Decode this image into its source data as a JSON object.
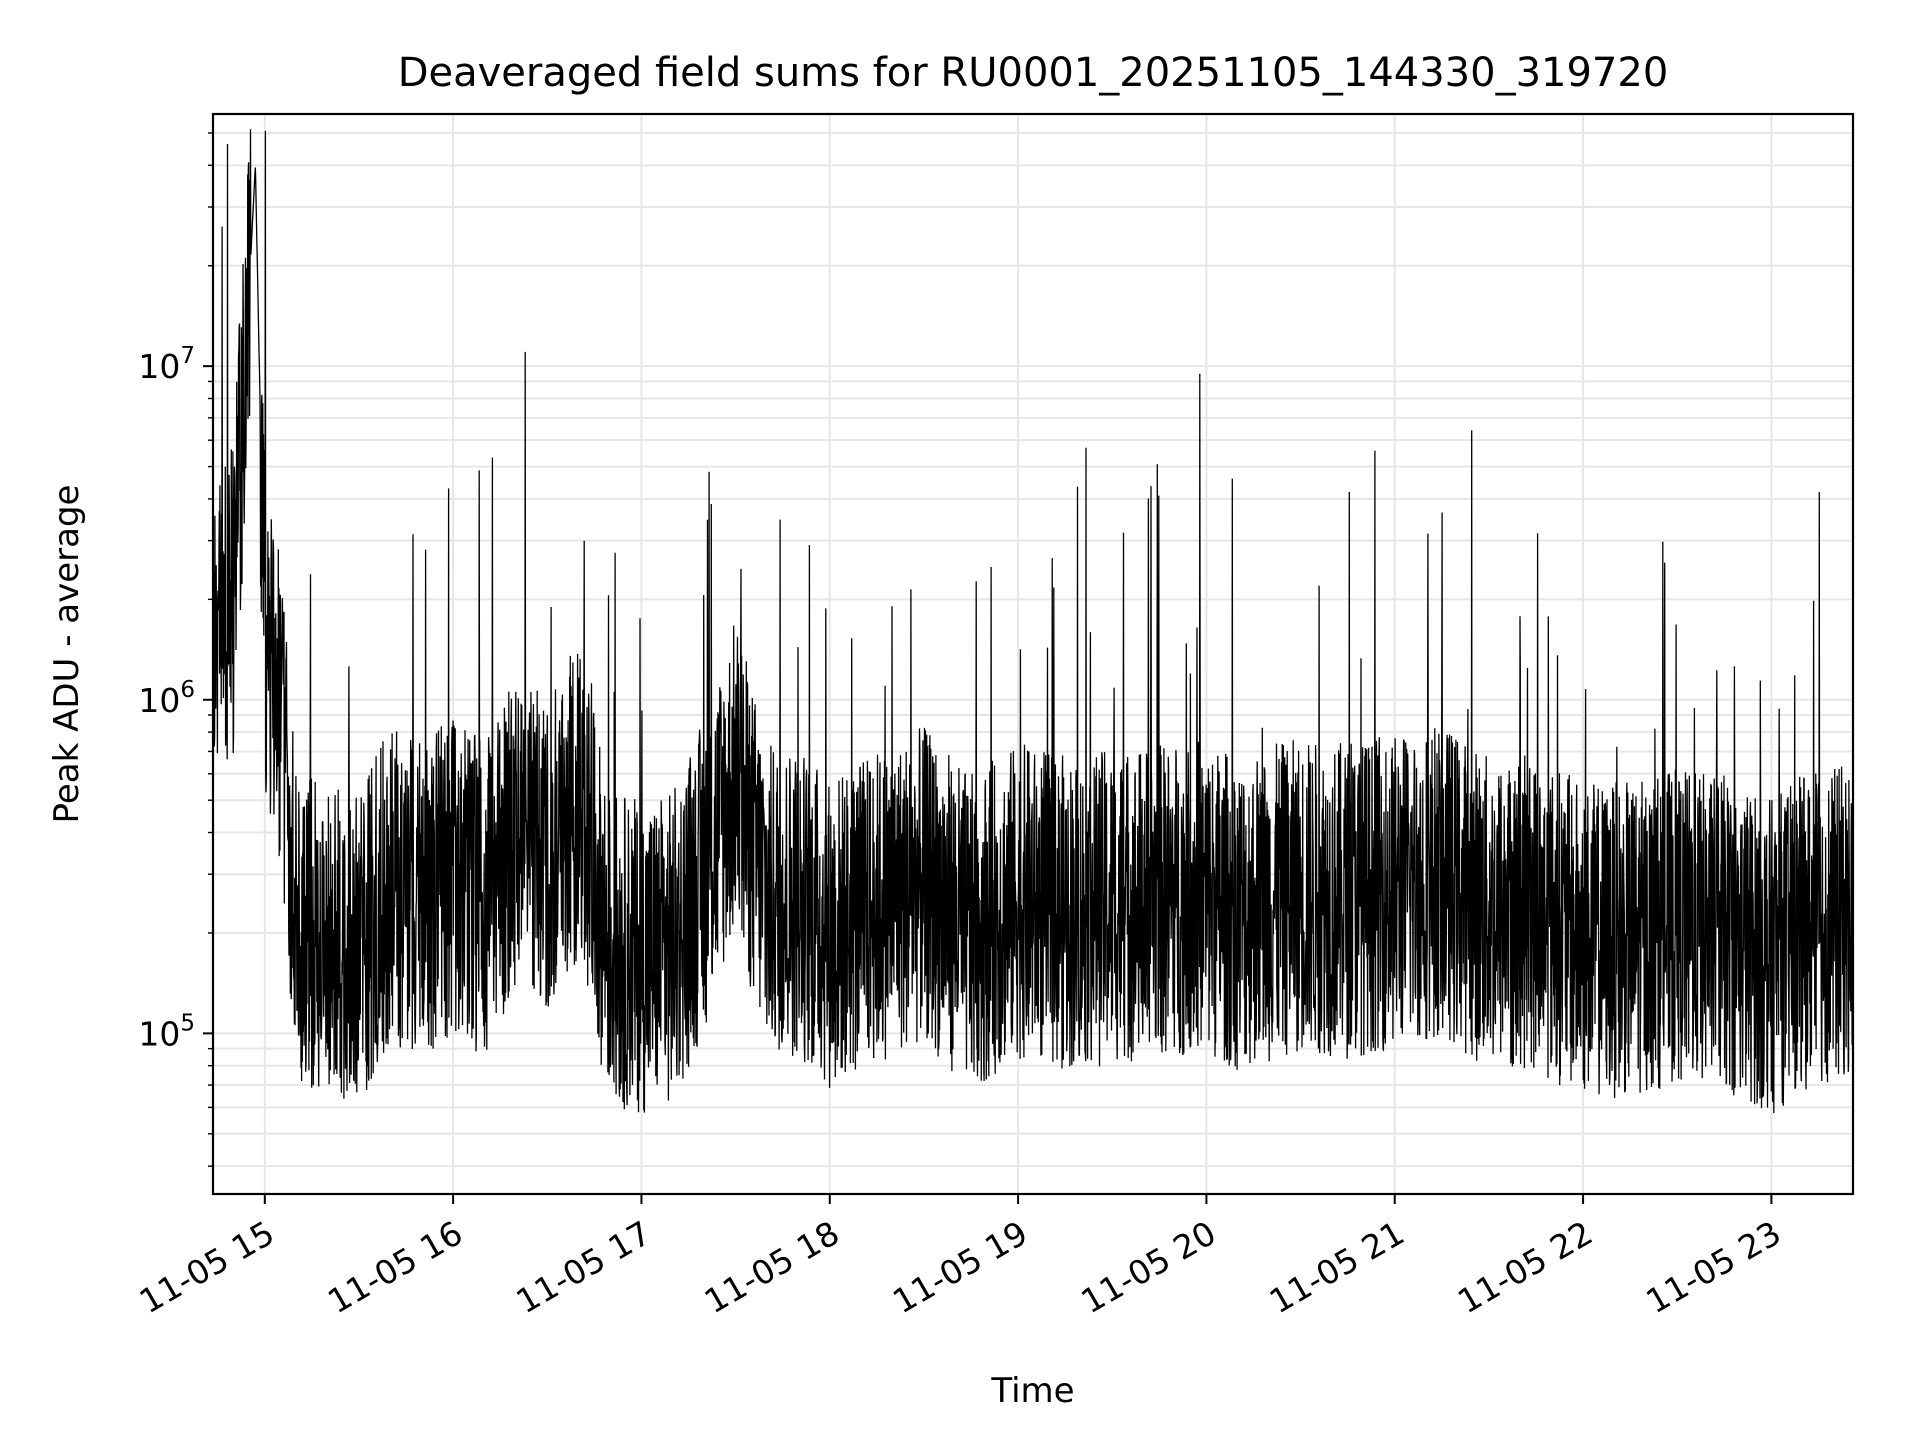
{
  "chart_data": {
    "type": "line",
    "title": "Deaveraged field sums for RU0001_20251105_144330_319720",
    "xlabel": "Time",
    "ylabel": "Peak ADU - average",
    "yscale": "log",
    "grid": true,
    "legend": "none",
    "xlim": [
      "2025-11-05T14:43:30",
      "2025-11-05T23:26:00"
    ],
    "ylim": [
      33000,
      57000000
    ],
    "x_ticks": [
      "11-05 15",
      "11-05 16",
      "11-05 17",
      "11-05 18",
      "11-05 19",
      "11-05 20",
      "11-05 21",
      "11-05 22",
      "11-05 23"
    ],
    "y_ticks": [
      {
        "base": "10",
        "exp": "5",
        "value": 100000
      },
      {
        "base": "10",
        "exp": "6",
        "value": 1000000
      },
      {
        "base": "10",
        "exp": "7",
        "value": 10000000
      }
    ],
    "line_color": "#000000",
    "series": [
      {
        "name": "",
        "x": [
          "2025-11-05T14:43:30",
          "2025-11-05T14:50",
          "2025-11-05T14:57",
          "2025-11-05T15:00",
          "2025-11-05T15:05",
          "2025-11-05T15:10",
          "2025-11-05T15:20",
          "2025-11-05T15:30",
          "2025-11-05T15:40",
          "2025-11-05T15:50",
          "2025-11-05T16:00",
          "2025-11-05T16:10",
          "2025-11-05T16:20",
          "2025-11-05T16:30",
          "2025-11-05T16:40",
          "2025-11-05T16:50",
          "2025-11-05T17:00",
          "2025-11-05T17:10",
          "2025-11-05T17:20",
          "2025-11-05T17:30",
          "2025-11-05T17:40",
          "2025-11-05T17:50",
          "2025-11-05T18:00",
          "2025-11-05T18:15",
          "2025-11-05T18:30",
          "2025-11-05T18:45",
          "2025-11-05T19:00",
          "2025-11-05T19:15",
          "2025-11-05T19:30",
          "2025-11-05T19:45",
          "2025-11-05T19:57",
          "2025-11-05T20:10",
          "2025-11-05T20:30",
          "2025-11-05T20:45",
          "2025-11-05T21:00",
          "2025-11-05T21:15",
          "2025-11-05T21:30",
          "2025-11-05T21:45",
          "2025-11-05T22:00",
          "2025-11-05T22:15",
          "2025-11-05T22:30",
          "2025-11-05T22:45",
          "2025-11-05T23:00",
          "2025-11-05T23:10",
          "2025-11-05T23:26"
        ],
        "values": [
          1800000,
          2000000,
          40000000,
          1500000,
          900000,
          200000,
          190000,
          180000,
          280000,
          250000,
          300000,
          250000,
          400000,
          350000,
          500000,
          180000,
          170000,
          180000,
          300000,
          600000,
          250000,
          250000,
          200000,
          240000,
          280000,
          200000,
          250000,
          230000,
          240000,
          250000,
          260000,
          230000,
          260000,
          250000,
          270000,
          290000,
          230000,
          230000,
          190000,
          190000,
          210000,
          200000,
          170000,
          200000,
          220000
        ]
      }
    ]
  }
}
